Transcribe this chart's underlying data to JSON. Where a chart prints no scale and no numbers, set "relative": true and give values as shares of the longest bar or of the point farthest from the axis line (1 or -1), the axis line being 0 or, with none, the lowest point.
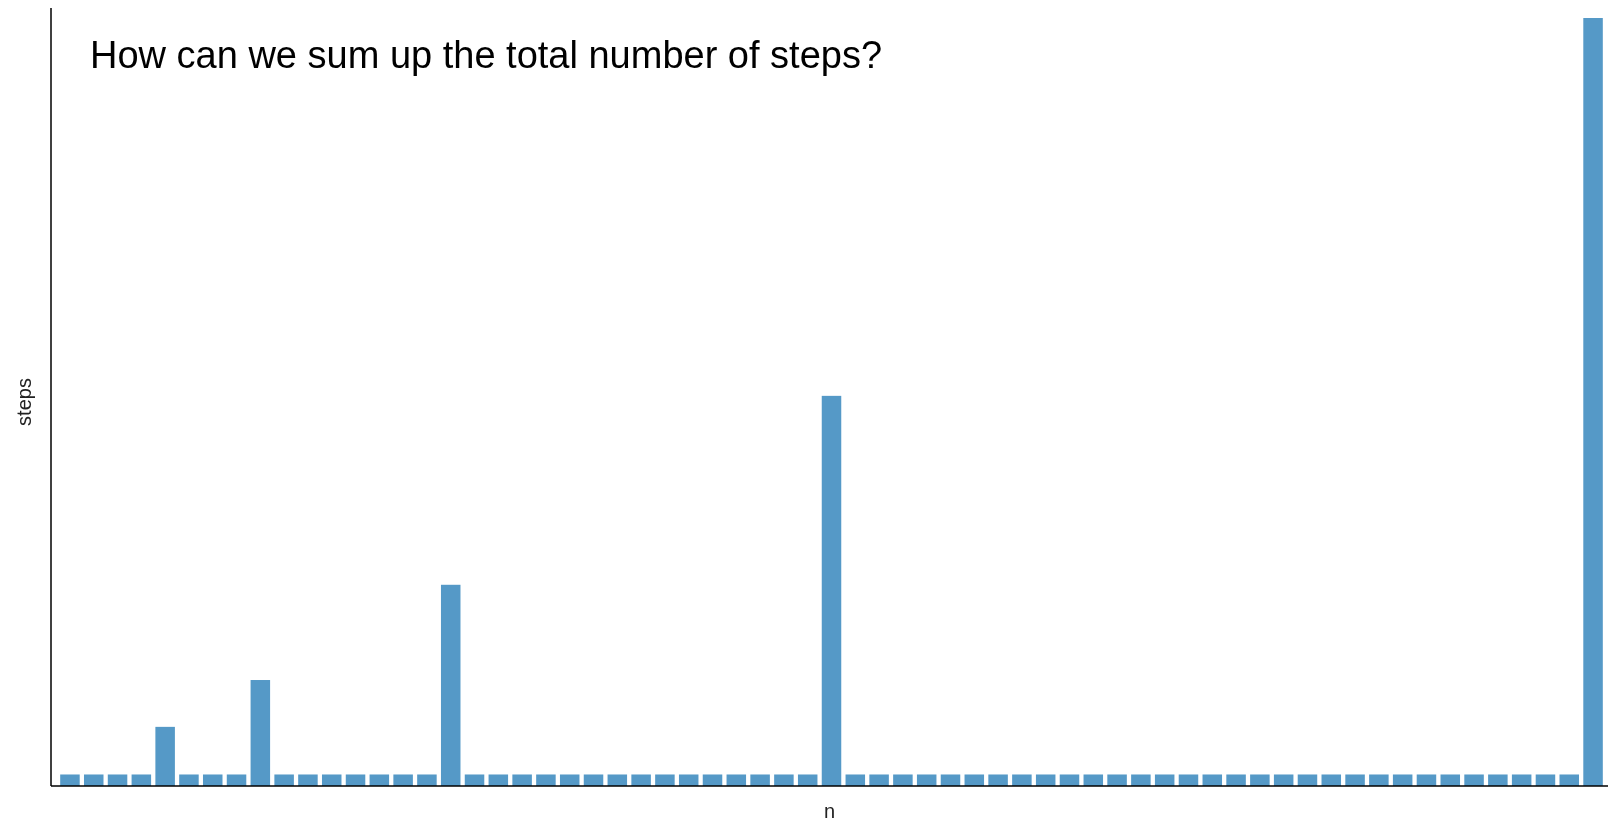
{
  "chart_data": {
    "type": "bar",
    "title": "How can we sum up the total number of steps?",
    "xlabel": "n",
    "ylabel": "steps",
    "relative": true,
    "categories": [
      null,
      null,
      null,
      null,
      null,
      null,
      null,
      null,
      null,
      null,
      null,
      null,
      null,
      null,
      null,
      null,
      null,
      null,
      null,
      null,
      null,
      null,
      null,
      null,
      null,
      null,
      null,
      null,
      null,
      null,
      null,
      null,
      null,
      null,
      null,
      null,
      null,
      null,
      null,
      null,
      null,
      null,
      null,
      null,
      null,
      null,
      null,
      null,
      null,
      null,
      null,
      null,
      null,
      null,
      null,
      null,
      null,
      null,
      null,
      null,
      null,
      null,
      null,
      null,
      null
    ],
    "values": [
      0.015,
      0.015,
      0.015,
      0.015,
      0.077,
      0.015,
      0.015,
      0.015,
      0.138,
      0.015,
      0.015,
      0.015,
      0.015,
      0.015,
      0.015,
      0.015,
      0.262,
      0.015,
      0.015,
      0.015,
      0.015,
      0.015,
      0.015,
      0.015,
      0.015,
      0.015,
      0.015,
      0.015,
      0.015,
      0.015,
      0.015,
      0.015,
      0.508,
      0.015,
      0.015,
      0.015,
      0.015,
      0.015,
      0.015,
      0.015,
      0.015,
      0.015,
      0.015,
      0.015,
      0.015,
      0.015,
      0.015,
      0.015,
      0.015,
      0.015,
      0.015,
      0.015,
      0.015,
      0.015,
      0.015,
      0.015,
      0.015,
      0.015,
      0.015,
      0.015,
      0.015,
      0.015,
      0.015,
      0.015,
      1
    ],
    "color": "#5599c7"
  }
}
